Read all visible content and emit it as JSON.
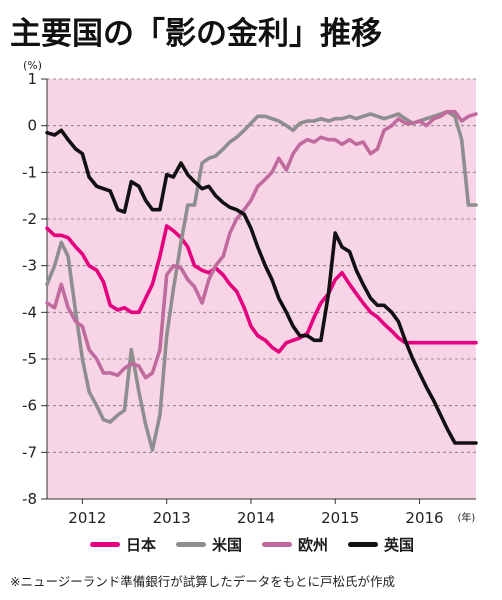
{
  "title": "主要国の「影の金利」推移",
  "footnote": "※ニュージーランド準備銀行が試算したデータをもとに戸松氏が作成",
  "colors": {
    "plot_background": "#f8d5e6",
    "japan": "#e4007f",
    "us": "#8e8e8e",
    "europe": "#c06b9e",
    "uk": "#111111",
    "grid": "#777777"
  },
  "chart_data": {
    "type": "line",
    "title": "主要国の「影の金利」推移",
    "y_unit": "(%)",
    "x_unit": "(年)",
    "ylim": [
      -8,
      1
    ],
    "xlim": [
      2011.58,
      2016.67
    ],
    "yticks": [
      1,
      0,
      -1,
      -2,
      -3,
      -4,
      -5,
      -6,
      -7,
      -8
    ],
    "xticks": [
      {
        "label": "2012",
        "x": 2012
      },
      {
        "label": "2013",
        "x": 2013
      },
      {
        "label": "2014",
        "x": 2014
      },
      {
        "label": "2015",
        "x": 2015
      },
      {
        "label": "2016",
        "x": 2016
      }
    ],
    "grid": "horizontal-dashed",
    "legend_position": "bottom",
    "series": [
      {
        "name": "日本",
        "color": "#e4007f",
        "x": [
          2011.58,
          2011.67,
          2011.75,
          2011.83,
          2011.92,
          2012.0,
          2012.08,
          2012.17,
          2012.25,
          2012.33,
          2012.42,
          2012.5,
          2012.58,
          2012.67,
          2012.75,
          2012.83,
          2012.92,
          2013.0,
          2013.08,
          2013.17,
          2013.25,
          2013.33,
          2013.42,
          2013.5,
          2013.58,
          2013.67,
          2013.75,
          2013.83,
          2013.92,
          2014.0,
          2014.08,
          2014.17,
          2014.25,
          2014.33,
          2014.42,
          2014.5,
          2014.58,
          2014.67,
          2014.75,
          2014.83,
          2014.92,
          2015.0,
          2015.08,
          2015.17,
          2015.25,
          2015.33,
          2015.42,
          2015.5,
          2015.58,
          2015.67,
          2015.75,
          2015.83,
          2015.92,
          2016.0,
          2016.08,
          2016.17,
          2016.25,
          2016.33,
          2016.42,
          2016.5,
          2016.58,
          2016.67
        ],
        "values": [
          -2.2,
          -2.35,
          -2.35,
          -2.4,
          -2.6,
          -2.75,
          -3.0,
          -3.1,
          -3.35,
          -3.85,
          -3.95,
          -3.9,
          -4.0,
          -4.0,
          -3.7,
          -3.4,
          -2.8,
          -2.15,
          -2.25,
          -2.4,
          -2.6,
          -3.0,
          -3.1,
          -3.15,
          -3.05,
          -3.2,
          -3.4,
          -3.55,
          -3.9,
          -4.3,
          -4.5,
          -4.6,
          -4.75,
          -4.85,
          -4.65,
          -4.6,
          -4.55,
          -4.45,
          -4.1,
          -3.8,
          -3.6,
          -3.3,
          -3.15,
          -3.4,
          -3.6,
          -3.8,
          -4.0,
          -4.1,
          -4.25,
          -4.4,
          -4.55,
          -4.65,
          -4.65,
          -4.65,
          -4.65,
          -4.65,
          -4.65,
          -4.65,
          -4.65,
          -4.65,
          -4.65,
          -4.65
        ]
      },
      {
        "name": "米国",
        "color": "#8e8e8e",
        "x": [
          2011.58,
          2011.67,
          2011.75,
          2011.83,
          2011.92,
          2012.0,
          2012.08,
          2012.17,
          2012.25,
          2012.33,
          2012.42,
          2012.5,
          2012.58,
          2012.67,
          2012.75,
          2012.83,
          2012.92,
          2013.0,
          2013.08,
          2013.17,
          2013.25,
          2013.33,
          2013.42,
          2013.5,
          2013.58,
          2013.67,
          2013.75,
          2013.83,
          2013.92,
          2014.0,
          2014.08,
          2014.17,
          2014.25,
          2014.33,
          2014.42,
          2014.5,
          2014.58,
          2014.67,
          2014.75,
          2014.83,
          2014.92,
          2015.0,
          2015.08,
          2015.17,
          2015.25,
          2015.33,
          2015.42,
          2015.5,
          2015.58,
          2015.67,
          2015.75,
          2015.83,
          2015.92,
          2016.0,
          2016.08,
          2016.17,
          2016.25,
          2016.33,
          2016.42,
          2016.5,
          2016.58,
          2016.67
        ],
        "values": [
          -3.4,
          -3.0,
          -2.5,
          -2.8,
          -4.0,
          -5.0,
          -5.7,
          -6.0,
          -6.3,
          -6.35,
          -6.2,
          -6.1,
          -4.8,
          -5.7,
          -6.4,
          -6.95,
          -6.2,
          -4.5,
          -3.5,
          -2.5,
          -1.7,
          -1.7,
          -0.8,
          -0.7,
          -0.65,
          -0.5,
          -0.35,
          -0.25,
          -0.1,
          0.05,
          0.2,
          0.2,
          0.15,
          0.1,
          0.0,
          -0.1,
          0.05,
          0.1,
          0.1,
          0.15,
          0.1,
          0.15,
          0.15,
          0.2,
          0.15,
          0.2,
          0.25,
          0.2,
          0.15,
          0.2,
          0.25,
          0.15,
          0.05,
          0.1,
          0.15,
          0.2,
          0.25,
          0.3,
          0.2,
          -0.3,
          -1.7,
          -1.7
        ]
      },
      {
        "name": "欧州",
        "color": "#c06b9e",
        "x": [
          2011.58,
          2011.67,
          2011.75,
          2011.83,
          2011.92,
          2012.0,
          2012.08,
          2012.17,
          2012.25,
          2012.33,
          2012.42,
          2012.5,
          2012.58,
          2012.67,
          2012.75,
          2012.83,
          2012.92,
          2013.0,
          2013.08,
          2013.17,
          2013.25,
          2013.33,
          2013.42,
          2013.5,
          2013.58,
          2013.67,
          2013.75,
          2013.83,
          2013.92,
          2014.0,
          2014.08,
          2014.17,
          2014.25,
          2014.33,
          2014.42,
          2014.5,
          2014.58,
          2014.67,
          2014.75,
          2014.83,
          2014.92,
          2015.0,
          2015.08,
          2015.17,
          2015.25,
          2015.33,
          2015.42,
          2015.5,
          2015.58,
          2015.67,
          2015.75,
          2015.83,
          2015.92,
          2016.0,
          2016.08,
          2016.17,
          2016.25,
          2016.33,
          2016.42,
          2016.5,
          2016.58,
          2016.67
        ],
        "values": [
          -3.8,
          -3.9,
          -3.4,
          -3.9,
          -4.2,
          -4.3,
          -4.8,
          -5.0,
          -5.3,
          -5.3,
          -5.35,
          -5.2,
          -5.1,
          -5.15,
          -5.4,
          -5.3,
          -4.8,
          -3.2,
          -3.0,
          -3.05,
          -3.3,
          -3.45,
          -3.8,
          -3.3,
          -3.0,
          -2.8,
          -2.3,
          -2.0,
          -1.8,
          -1.6,
          -1.3,
          -1.15,
          -1.0,
          -0.7,
          -0.95,
          -0.6,
          -0.4,
          -0.3,
          -0.35,
          -0.25,
          -0.3,
          -0.3,
          -0.4,
          -0.3,
          -0.4,
          -0.35,
          -0.6,
          -0.5,
          -0.1,
          0.0,
          0.15,
          0.05,
          0.05,
          0.1,
          0.0,
          0.15,
          0.2,
          0.3,
          0.3,
          0.1,
          0.2,
          0.25
        ]
      },
      {
        "name": "英国",
        "color": "#111111",
        "x": [
          2011.58,
          2011.67,
          2011.75,
          2011.83,
          2011.92,
          2012.0,
          2012.08,
          2012.17,
          2012.25,
          2012.33,
          2012.42,
          2012.5,
          2012.58,
          2012.67,
          2012.75,
          2012.83,
          2012.92,
          2013.0,
          2013.08,
          2013.17,
          2013.25,
          2013.33,
          2013.42,
          2013.5,
          2013.58,
          2013.67,
          2013.75,
          2013.83,
          2013.92,
          2014.0,
          2014.08,
          2014.17,
          2014.25,
          2014.33,
          2014.42,
          2014.5,
          2014.58,
          2014.67,
          2014.75,
          2014.83,
          2014.92,
          2015.0,
          2015.08,
          2015.17,
          2015.25,
          2015.33,
          2015.42,
          2015.5,
          2015.58,
          2015.67,
          2015.75,
          2015.83,
          2015.92,
          2016.0,
          2016.08,
          2016.17,
          2016.25,
          2016.33,
          2016.42,
          2016.5,
          2016.58,
          2016.67
        ],
        "values": [
          -0.15,
          -0.2,
          -0.1,
          -0.3,
          -0.5,
          -0.6,
          -1.1,
          -1.3,
          -1.35,
          -1.4,
          -1.8,
          -1.85,
          -1.2,
          -1.3,
          -1.6,
          -1.8,
          -1.8,
          -1.05,
          -1.1,
          -0.8,
          -1.05,
          -1.2,
          -1.35,
          -1.3,
          -1.5,
          -1.65,
          -1.75,
          -1.8,
          -1.9,
          -2.2,
          -2.6,
          -3.0,
          -3.3,
          -3.7,
          -4.0,
          -4.3,
          -4.5,
          -4.5,
          -4.6,
          -4.6,
          -3.6,
          -2.3,
          -2.6,
          -2.7,
          -3.1,
          -3.4,
          -3.7,
          -3.85,
          -3.85,
          -4.0,
          -4.2,
          -4.6,
          -5.0,
          -5.3,
          -5.6,
          -5.9,
          -6.2,
          -6.5,
          -6.8,
          -6.8,
          -6.8,
          -6.8
        ]
      }
    ]
  }
}
